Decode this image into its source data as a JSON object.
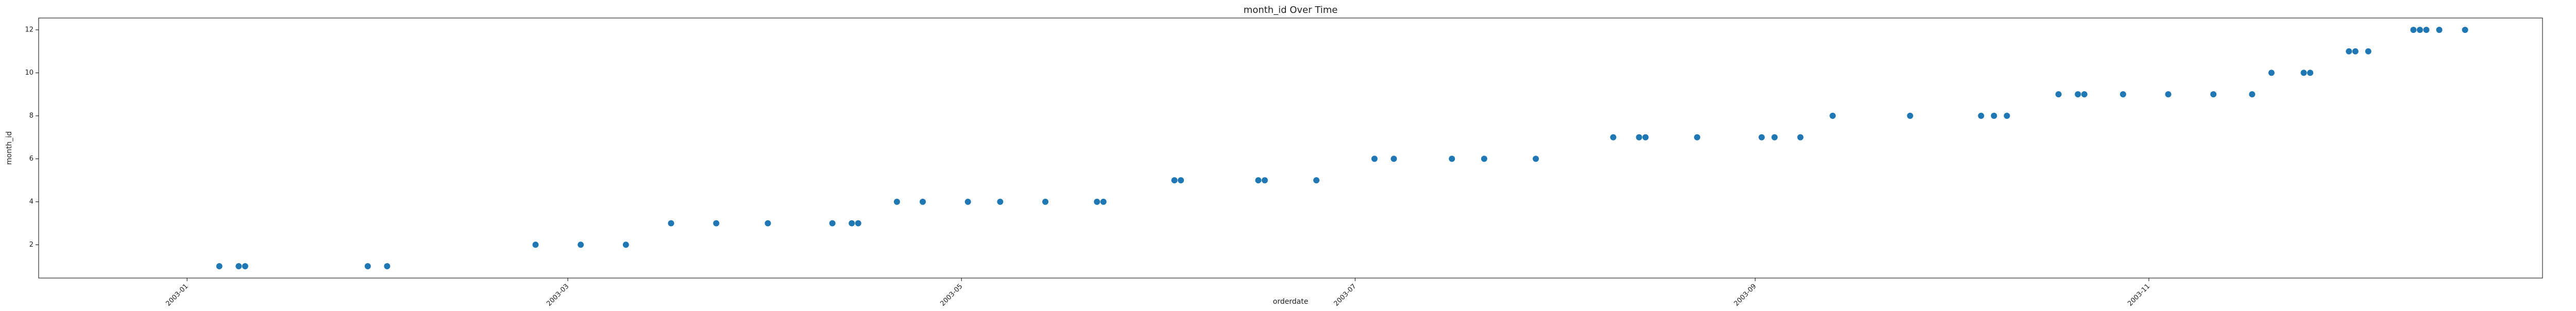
{
  "chart_data": {
    "type": "scatter",
    "title": "month_id Over Time",
    "xlabel": "orderdate",
    "ylabel": "month_id",
    "x_ticks": [
      "2003-01",
      "2003-03",
      "2003-05",
      "2003-07",
      "2003-09",
      "2003-11"
    ],
    "y_ticks": [
      2,
      4,
      6,
      8,
      10,
      12
    ],
    "xlim": [
      "2002-12-09",
      "2004-01-01"
    ],
    "ylim": [
      0.45,
      12.55
    ],
    "grid": false,
    "colors": {
      "marker": "#1f77b4",
      "axis": "#000000",
      "text": "#222222"
    },
    "series": [
      {
        "x": [
          "2003-01-06",
          "2003-01-09",
          "2003-01-10",
          "2003-01-29",
          "2003-02-01",
          "2003-02-24",
          "2003-03-03",
          "2003-03-10",
          "2003-03-17",
          "2003-03-24",
          "2003-04-01",
          "2003-04-11",
          "2003-04-14",
          "2003-04-15",
          "2003-04-21",
          "2003-04-25",
          "2003-05-02",
          "2003-05-07",
          "2003-05-14",
          "2003-05-22",
          "2003-05-23",
          "2003-06-03",
          "2003-06-04",
          "2003-06-16",
          "2003-06-17",
          "2003-06-25",
          "2003-07-04",
          "2003-07-07",
          "2003-07-16",
          "2003-07-21",
          "2003-07-29",
          "2003-08-10",
          "2003-08-14",
          "2003-08-15",
          "2003-08-23",
          "2003-09-02",
          "2003-09-04",
          "2003-09-08",
          "2003-09-13",
          "2003-09-25",
          "2003-10-06",
          "2003-10-08",
          "2003-10-10",
          "2003-10-18",
          "2003-10-21",
          "2003-10-22",
          "2003-10-28",
          "2003-11-04",
          "2003-11-11",
          "2003-11-17",
          "2003-11-20",
          "2003-11-25",
          "2003-11-26",
          "2003-12-02",
          "2003-12-03",
          "2003-12-05",
          "2003-12-12",
          "2003-12-13",
          "2003-12-14",
          "2003-12-16",
          "2003-12-20"
        ],
        "y": [
          1,
          1,
          1,
          1,
          1,
          2,
          2,
          2,
          3,
          3,
          3,
          3,
          3,
          3,
          4,
          4,
          4,
          4,
          4,
          4,
          4,
          5,
          5,
          5,
          5,
          5,
          6,
          6,
          6,
          6,
          6,
          7,
          7,
          7,
          7,
          7,
          7,
          7,
          8,
          8,
          8,
          8,
          8,
          9,
          9,
          9,
          9,
          9,
          9,
          9,
          10,
          10,
          10,
          11,
          11,
          11,
          12,
          12,
          12,
          12,
          12
        ]
      }
    ]
  }
}
